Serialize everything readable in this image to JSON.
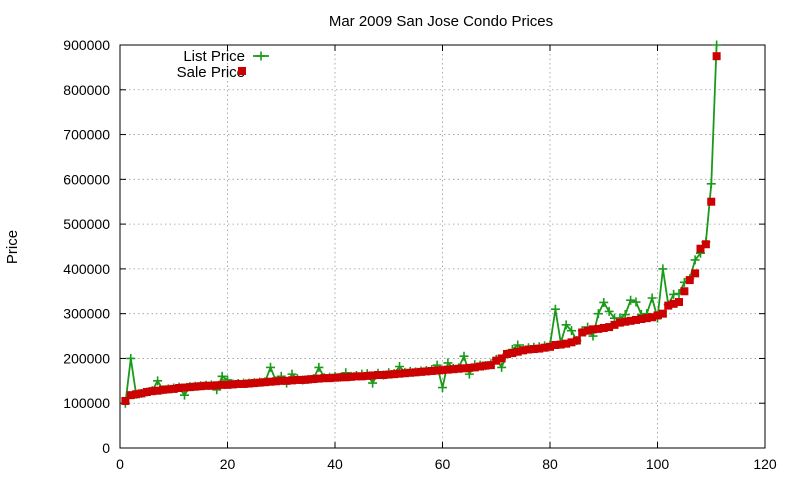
{
  "chart_data": {
    "type": "line",
    "title": "Mar 2009 San Jose Condo Prices",
    "xlabel": "",
    "ylabel": "Price",
    "xlim": [
      0,
      120
    ],
    "ylim": [
      0,
      900000
    ],
    "x_ticks": [
      0,
      20,
      40,
      60,
      80,
      100,
      120
    ],
    "y_ticks": [
      0,
      100000,
      200000,
      300000,
      400000,
      500000,
      600000,
      700000,
      800000,
      900000
    ],
    "grid": true,
    "legend_position": "top-left",
    "series": [
      {
        "name": "List Price",
        "style": "line-with-plus-markers",
        "color": "#1a9a1a",
        "x": [
          1,
          2,
          3,
          4,
          5,
          6,
          7,
          8,
          9,
          10,
          11,
          12,
          13,
          14,
          15,
          16,
          17,
          18,
          19,
          20,
          21,
          22,
          23,
          24,
          25,
          26,
          27,
          28,
          29,
          30,
          31,
          32,
          33,
          34,
          35,
          36,
          37,
          38,
          39,
          40,
          41,
          42,
          43,
          44,
          45,
          46,
          47,
          48,
          49,
          50,
          51,
          52,
          53,
          54,
          55,
          56,
          57,
          58,
          59,
          60,
          61,
          62,
          63,
          64,
          65,
          66,
          67,
          68,
          69,
          70,
          71,
          72,
          73,
          74,
          75,
          76,
          77,
          78,
          79,
          80,
          81,
          82,
          83,
          84,
          85,
          86,
          87,
          88,
          89,
          90,
          91,
          92,
          93,
          94,
          95,
          96,
          97,
          98,
          99,
          100,
          101,
          102,
          103,
          104,
          105,
          106,
          107,
          108,
          109,
          110,
          111
        ],
        "values": [
          100000,
          200000,
          120000,
          122000,
          125000,
          128000,
          150000,
          130000,
          132000,
          134000,
          136000,
          118000,
          137000,
          138000,
          139000,
          140000,
          141000,
          130000,
          160000,
          152000,
          143000,
          144000,
          145000,
          145000,
          146000,
          147000,
          148000,
          180000,
          150000,
          160000,
          145000,
          165000,
          155000,
          152000,
          153000,
          155000,
          180000,
          157000,
          158000,
          160000,
          158000,
          168000,
          160000,
          162000,
          165000,
          166000,
          145000,
          167000,
          163000,
          168000,
          166000,
          182000,
          169000,
          171000,
          170000,
          172000,
          173000,
          175000,
          185000,
          135000,
          190000,
          178000,
          179000,
          205000,
          165000,
          186000,
          185000,
          184000,
          188000,
          198000,
          180000,
          210000,
          220000,
          230000,
          222000,
          224000,
          225000,
          226000,
          228000,
          230000,
          310000,
          235000,
          275000,
          262000,
          240000,
          262000,
          270000,
          250000,
          300000,
          325000,
          305000,
          290000,
          290000,
          298000,
          330000,
          326000,
          298000,
          300000,
          335000,
          290000,
          400000,
          320000,
          343000,
          345000,
          370000,
          378000,
          420000,
          435000,
          460000,
          590000,
          900000
        ]
      },
      {
        "name": "Sale Price",
        "style": "square-markers",
        "color": "#cc0000",
        "x": [
          1,
          2,
          3,
          4,
          5,
          6,
          7,
          8,
          9,
          10,
          11,
          12,
          13,
          14,
          15,
          16,
          17,
          18,
          19,
          20,
          21,
          22,
          23,
          24,
          25,
          26,
          27,
          28,
          29,
          30,
          31,
          32,
          33,
          34,
          35,
          36,
          37,
          38,
          39,
          40,
          41,
          42,
          43,
          44,
          45,
          46,
          47,
          48,
          49,
          50,
          51,
          52,
          53,
          54,
          55,
          56,
          57,
          58,
          59,
          60,
          61,
          62,
          63,
          64,
          65,
          66,
          67,
          68,
          69,
          70,
          71,
          72,
          73,
          74,
          75,
          76,
          77,
          78,
          79,
          80,
          81,
          82,
          83,
          84,
          85,
          86,
          87,
          88,
          89,
          90,
          91,
          92,
          93,
          94,
          95,
          96,
          97,
          98,
          99,
          100,
          101,
          102,
          103,
          104,
          105,
          106,
          107,
          108,
          109,
          110,
          111
        ],
        "values": [
          105000,
          118000,
          120000,
          122000,
          125000,
          127000,
          128000,
          130000,
          131000,
          132000,
          134000,
          135000,
          136000,
          137000,
          138000,
          139000,
          139000,
          140000,
          141000,
          141000,
          142000,
          143000,
          143000,
          144000,
          145000,
          146000,
          147000,
          148000,
          149000,
          150000,
          150000,
          151000,
          152000,
          152000,
          153000,
          154000,
          155000,
          156000,
          156000,
          157000,
          158000,
          158000,
          159000,
          160000,
          160000,
          161000,
          162000,
          163000,
          163000,
          164000,
          165000,
          166000,
          167000,
          168000,
          169000,
          170000,
          171000,
          172000,
          173000,
          174000,
          175000,
          176000,
          177000,
          178000,
          179000,
          180000,
          182000,
          184000,
          185000,
          195000,
          200000,
          210000,
          212000,
          215000,
          218000,
          220000,
          221000,
          222000,
          224000,
          226000,
          230000,
          231000,
          233000,
          236000,
          240000,
          258000,
          262000,
          265000,
          266000,
          268000,
          270000,
          275000,
          280000,
          282000,
          284000,
          286000,
          288000,
          290000,
          292000,
          296000,
          300000,
          318000,
          322000,
          326000,
          350000,
          375000,
          390000,
          445000,
          455000,
          550000,
          875000
        ]
      }
    ]
  }
}
